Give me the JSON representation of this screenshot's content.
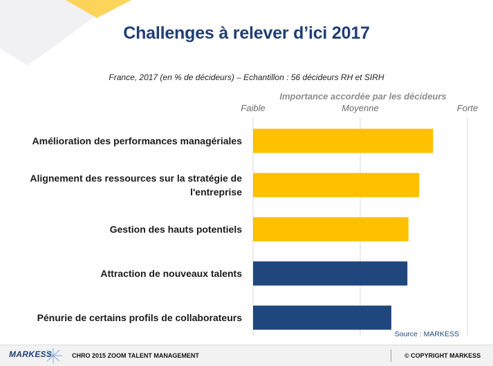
{
  "title": "Challenges à relever d’ici 2017",
  "subtitle": "France, 2017 (en % de décideurs) – Echantillon : 56 décideurs RH et SIRH",
  "source": "Source : MARKESS",
  "footer": {
    "logo": "MARKESS",
    "center": "CHRO 2015 ZOOM TALENT MANAGEMENT",
    "right": "© COPYRIGHT MARKESS"
  },
  "colors": {
    "accent": "#ffc000",
    "navy": "#1f477d",
    "title": "#1f3f74",
    "grid": "#d9d9d9"
  },
  "chart_data": {
    "type": "bar",
    "orientation": "horizontal",
    "axis_title": "Importance accordée par les décideurs",
    "scale_labels": [
      "Faible",
      "Moyenne",
      "Forte"
    ],
    "xlim": [
      0,
      2
    ],
    "grid": true,
    "categories": [
      [
        "Amélioration des performances managériales"
      ],
      [
        "Alignement des ressources sur la stratégie de",
        "l'entreprise"
      ],
      [
        "Gestion des hauts potentiels"
      ],
      [
        "Attraction de nouveaux talents"
      ],
      [
        "Pénurie de certains profils de collaborateurs"
      ]
    ],
    "values": [
      1.68,
      1.55,
      1.45,
      1.44,
      1.29
    ],
    "bar_colors": [
      "#ffc000",
      "#ffc000",
      "#ffc000",
      "#1f477d",
      "#1f477d"
    ]
  }
}
